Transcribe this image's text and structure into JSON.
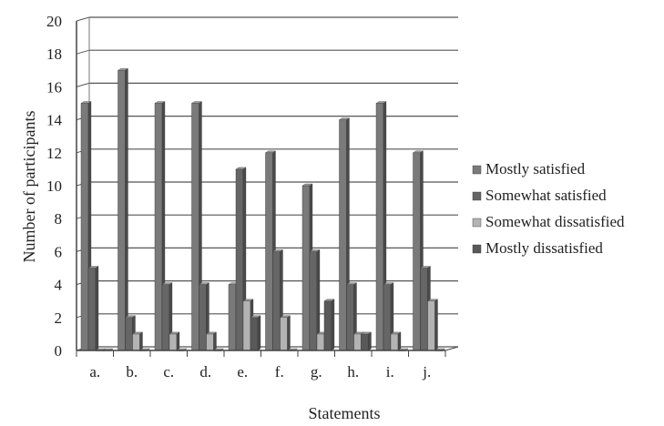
{
  "chart_data": {
    "type": "bar",
    "title": "",
    "xlabel": "Statements",
    "ylabel": "Number of participants",
    "ylim": [
      0,
      20
    ],
    "yticks": [
      0,
      2,
      4,
      6,
      8,
      10,
      12,
      14,
      16,
      18,
      20
    ],
    "grid": true,
    "legend_position": "right",
    "categories": [
      "a.",
      "b.",
      "c.",
      "d.",
      "e.",
      "f.",
      "g.",
      "h.",
      "i.",
      "j."
    ],
    "series": [
      {
        "name": "Mostly satisfied",
        "color": "#7a7a7a",
        "values": [
          15,
          17,
          15,
          15,
          4,
          12,
          10,
          14,
          15,
          12
        ]
      },
      {
        "name": "Somewhat satisfied",
        "color": "#666666",
        "values": [
          5,
          2,
          4,
          4,
          11,
          6,
          6,
          4,
          4,
          5
        ]
      },
      {
        "name": "Somewhat dissatisfied",
        "color": "#b3b3b3",
        "values": [
          0,
          1,
          1,
          1,
          3,
          2,
          1,
          1,
          1,
          3
        ]
      },
      {
        "name": "Mostly dissatisfied",
        "color": "#595959",
        "values": [
          0,
          0,
          0,
          0,
          2,
          0,
          3,
          1,
          0,
          0
        ]
      }
    ]
  }
}
